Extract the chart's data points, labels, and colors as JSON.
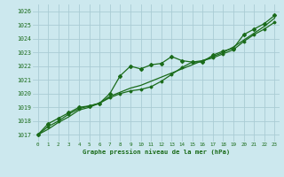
{
  "title": "Graphe pression niveau de la mer (hPa)",
  "bg_color": "#cce8ee",
  "grid_color": "#aaccd4",
  "line_color": "#1a6b1a",
  "text_color": "#1a6b1a",
  "xlim": [
    -0.5,
    23.5
  ],
  "ylim": [
    1016.5,
    1026.5
  ],
  "yticks": [
    1017,
    1018,
    1019,
    1020,
    1021,
    1022,
    1023,
    1024,
    1025,
    1026
  ],
  "xticks": [
    0,
    1,
    2,
    3,
    4,
    5,
    6,
    7,
    8,
    9,
    10,
    11,
    12,
    13,
    14,
    15,
    16,
    17,
    18,
    19,
    20,
    21,
    22,
    23
  ],
  "series1": [
    1017.0,
    1017.8,
    1018.2,
    1018.6,
    1019.0,
    1019.1,
    1019.3,
    1020.0,
    1021.3,
    1022.0,
    1021.8,
    1022.1,
    1022.2,
    1022.7,
    1022.4,
    1022.3,
    1022.3,
    1022.8,
    1023.1,
    1023.3,
    1024.3,
    1024.7,
    1025.1,
    1025.7
  ],
  "series2": [
    1017.0,
    1017.6,
    1018.0,
    1018.5,
    1018.9,
    1019.1,
    1019.3,
    1019.7,
    1020.0,
    1020.2,
    1020.3,
    1020.5,
    1020.9,
    1021.4,
    1021.9,
    1022.3,
    1022.4,
    1022.6,
    1022.9,
    1023.2,
    1023.8,
    1024.3,
    1024.7,
    1025.2
  ],
  "series3": [
    1017.0,
    1017.4,
    1017.9,
    1018.3,
    1018.8,
    1019.0,
    1019.3,
    1019.8,
    1020.1,
    1020.4,
    1020.6,
    1020.9,
    1021.2,
    1021.5,
    1021.8,
    1022.1,
    1022.4,
    1022.7,
    1023.0,
    1023.4,
    1023.9,
    1024.4,
    1024.9,
    1025.5
  ]
}
